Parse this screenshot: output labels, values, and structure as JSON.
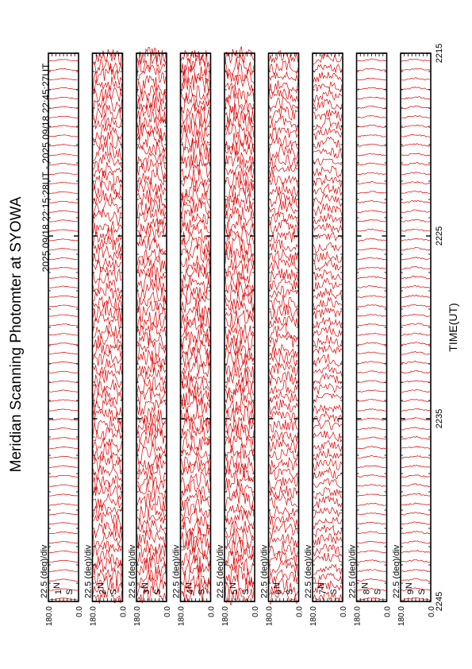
{
  "chart_data": {
    "type": "line",
    "orientation": "rotated-90-ccw",
    "title": "Meridian Scanning Photomter at SYOWA",
    "time_range_label": "2025 09/18 22:15:28UT - 2025 09/18 22:45:27UT",
    "xlabel": "TIME(UT)",
    "x_range": [
      2215,
      2245
    ],
    "x_ticks": [
      {
        "value": 2215,
        "label": "2215"
      },
      {
        "value": 2225,
        "label": "2225"
      },
      {
        "value": 2235,
        "label": "2235"
      },
      {
        "value": 2245,
        "label": "2245"
      }
    ],
    "y_range_deg": [
      0.0,
      180.0
    ],
    "y_tick_labels": [
      "180.0",
      "0.0"
    ],
    "y_axis_letters": [
      "N",
      "S"
    ],
    "line_color": "#e00000",
    "panels": [
      {
        "channel": "1",
        "scale_label": "22.5 (deg)/div",
        "variability": 0.02
      },
      {
        "channel": "2",
        "scale_label": "22.5 (deg)/div",
        "variability": 0.55
      },
      {
        "channel": "3",
        "scale_label": "22.5 (deg)/div",
        "variability": 0.6
      },
      {
        "channel": "4",
        "scale_label": "22.5 (deg)/div",
        "variability": 0.65
      },
      {
        "channel": "5",
        "scale_label": "22.5 (deg)/div",
        "variability": 0.65
      },
      {
        "channel": "6",
        "scale_label": "22.5 (deg)/div",
        "variability": 0.45
      },
      {
        "channel": "7",
        "scale_label": "22.5 (deg)/div",
        "variability": 0.35
      },
      {
        "channel": "8",
        "scale_label": "22.5 (deg)/div",
        "variability": 0.04
      },
      {
        "channel": "9",
        "scale_label": "22.5 (deg)/div",
        "variability": 0.05
      }
    ]
  }
}
